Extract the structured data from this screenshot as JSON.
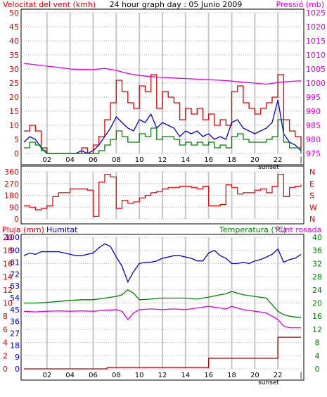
{
  "colors": {
    "background": "#ffffff",
    "panel_bg": "#ffffff",
    "frame": "#000000",
    "grid_v": "#c8c8c8",
    "grid_h": "#b4b4b4",
    "red": "#e00000",
    "green": "#008000",
    "blue": "#0000c8",
    "magenta": "#e000e0",
    "dark_red": "#b00000"
  },
  "chart_data": [
    {
      "type": "line",
      "name": "wind-pressure",
      "title": "24 hour graph day : 05 Junio 2009",
      "left_axis_label": "Velocitat del vent (kmh)",
      "right_axis_label": "Pressió (mb)",
      "y_left_ticks": [
        "0",
        "5",
        "10",
        "15",
        "20",
        "25",
        "30",
        "35",
        "40",
        "45",
        "50"
      ],
      "y_right_ticks": [
        "975",
        "980",
        "985",
        "990",
        "995",
        "1000",
        "1005",
        "1010",
        "1015",
        "1020",
        "1025"
      ],
      "ylim_left": [
        0,
        50
      ],
      "ylim_right": [
        975,
        1025
      ],
      "x_ticks": [
        "02",
        "04",
        "06",
        "08",
        "10",
        "12",
        "14",
        "16",
        "18",
        "20",
        "22"
      ],
      "x_tick_hours": [
        2,
        4,
        6,
        8,
        10,
        12,
        14,
        16,
        18,
        20,
        22
      ],
      "xlim": [
        0,
        24
      ],
      "x_end_label": "|",
      "sunset_label": "sunset",
      "sunset_hour": 21.2,
      "grid": true,
      "series": [
        {
          "color": "red",
          "axis": "left",
          "style": "step",
          "x": [
            0,
            0.5,
            1,
            1.5,
            2,
            2.5,
            3,
            3.5,
            4,
            4.5,
            5,
            5.5,
            6,
            6.5,
            7,
            7.5,
            8,
            8.5,
            9,
            9.5,
            10,
            10.5,
            11,
            11.5,
            12,
            12.5,
            13,
            13.5,
            14,
            14.5,
            15,
            15.5,
            16,
            16.5,
            17,
            17.5,
            18,
            18.5,
            19,
            19.5,
            20,
            20.5,
            21,
            21.5,
            22,
            22.5,
            23,
            23.5,
            24
          ],
          "values": [
            8,
            10,
            8,
            2,
            0,
            0,
            0,
            0,
            0,
            0,
            2,
            0,
            3,
            6,
            12,
            18,
            26,
            22,
            18,
            16,
            24,
            22,
            28,
            16,
            22,
            20,
            18,
            12,
            16,
            14,
            16,
            12,
            14,
            10,
            12,
            10,
            22,
            24,
            18,
            16,
            14,
            16,
            18,
            20,
            28,
            12,
            8,
            6,
            2
          ]
        },
        {
          "color": "blue",
          "axis": "left",
          "style": "line",
          "x": [
            0,
            0.5,
            1,
            1.5,
            2,
            2.5,
            3,
            3.5,
            4,
            4.5,
            5,
            5.5,
            6,
            6.5,
            7,
            7.5,
            8,
            8.5,
            9,
            9.5,
            10,
            10.5,
            11,
            11.5,
            12,
            12.5,
            13,
            13.5,
            14,
            14.5,
            15,
            15.5,
            16,
            16.5,
            17,
            17.5,
            18,
            18.5,
            19,
            19.5,
            20,
            20.5,
            21,
            21.5,
            22,
            22.5,
            23,
            23.5,
            24
          ],
          "values": [
            4,
            6,
            5,
            2,
            0,
            0,
            0,
            0,
            0,
            0,
            1,
            0,
            1,
            3,
            6,
            9,
            13,
            11,
            9,
            8,
            12,
            11,
            14,
            9,
            11,
            10,
            9,
            6,
            8,
            7,
            8,
            6,
            7,
            5,
            6,
            5,
            11,
            12,
            9,
            8,
            7,
            8,
            9,
            11,
            19,
            7,
            4,
            3,
            1
          ]
        },
        {
          "color": "green",
          "axis": "left",
          "style": "step",
          "x": [
            0,
            0.5,
            1,
            1.5,
            2,
            2.5,
            3,
            3.5,
            4,
            4.5,
            5,
            5.5,
            6,
            6.5,
            7,
            7.5,
            8,
            8.5,
            9,
            9.5,
            10,
            10.5,
            11,
            11.5,
            12,
            12.5,
            13,
            13.5,
            14,
            14.5,
            15,
            15.5,
            16,
            16.5,
            17,
            17.5,
            18,
            18.5,
            19,
            19.5,
            20,
            20.5,
            21,
            21.5,
            22,
            22.5,
            23,
            23.5,
            24
          ],
          "values": [
            2,
            4,
            3,
            1,
            0,
            0,
            0,
            0,
            0,
            0,
            0,
            0,
            0,
            1,
            3,
            5,
            8,
            6,
            4,
            4,
            7,
            6,
            9,
            5,
            6,
            6,
            5,
            3,
            4,
            3,
            4,
            3,
            4,
            2,
            3,
            2,
            6,
            7,
            5,
            4,
            4,
            4,
            5,
            6,
            12,
            4,
            2,
            2,
            0
          ]
        },
        {
          "color": "magenta",
          "axis": "right",
          "style": "line",
          "x": [
            0,
            1,
            2,
            3,
            4,
            5,
            6,
            7,
            8,
            9,
            10,
            11,
            12,
            13,
            14,
            15,
            16,
            17,
            18,
            19,
            20,
            21,
            22,
            23,
            24
          ],
          "values": [
            1007,
            1006.5,
            1006,
            1005.6,
            1005,
            1004.8,
            1004.8,
            1005.2,
            1004.5,
            1003.4,
            1002.7,
            1002.3,
            1002,
            1001.8,
            1001.6,
            1001.4,
            1001.2,
            1001,
            1000.7,
            1000.3,
            1000,
            999.6,
            1000.2,
            1000.6,
            1000.8
          ]
        }
      ]
    },
    {
      "type": "line",
      "name": "wind-direction",
      "y_left_ticks": [
        "0",
        "90",
        "180",
        "270",
        "360"
      ],
      "y_right_labels": [
        "N",
        "E",
        "S",
        "W",
        "N"
      ],
      "ylim_left": [
        0,
        360
      ],
      "xlim": [
        0,
        24
      ],
      "grid": true,
      "series": [
        {
          "color": "red",
          "axis": "left",
          "style": "step",
          "x": [
            0,
            0.5,
            1,
            1.5,
            2,
            2.5,
            3,
            3.5,
            4,
            4.5,
            5,
            5.5,
            6,
            6.5,
            7,
            7.5,
            8,
            8.5,
            9,
            9.5,
            10,
            10.5,
            11,
            11.5,
            12,
            12.5,
            13,
            13.5,
            14,
            14.5,
            15,
            15.5,
            16,
            16.5,
            17,
            17.5,
            18,
            18.5,
            19,
            19.5,
            20,
            20.5,
            21,
            21.5,
            22,
            22.5,
            23,
            23.5,
            24
          ],
          "values": [
            100,
            90,
            70,
            80,
            100,
            170,
            200,
            200,
            230,
            230,
            230,
            220,
            20,
            280,
            340,
            320,
            80,
            140,
            120,
            130,
            160,
            180,
            200,
            210,
            230,
            240,
            240,
            250,
            250,
            240,
            230,
            250,
            100,
            100,
            110,
            260,
            240,
            190,
            200,
            200,
            220,
            230,
            200,
            250,
            340,
            170,
            240,
            250,
            260
          ]
        }
      ]
    },
    {
      "type": "line",
      "name": "rain-humidity-temp",
      "left_axis_label": "Pluja (mm)",
      "left_axis_label2": "Humitat",
      "right_axis_label": "Temperatura (°C)",
      "right_axis_label2": "Punt rosada",
      "y_left_ticks_rain": [
        "0",
        "2",
        "4",
        "6",
        "8",
        "10",
        "12",
        "14",
        "16",
        "18",
        "20"
      ],
      "y_left_ticks_hum": [
        "0",
        "9",
        "18",
        "27",
        "36",
        "45",
        "54",
        "63",
        "72",
        "81",
        "90"
      ],
      "y_right_ticks": [
        "0",
        "4",
        "8",
        "12",
        "16",
        "20",
        "24",
        "28",
        "32",
        "36",
        "40"
      ],
      "y_left_max_label": "100",
      "ylim_rain": [
        0,
        20
      ],
      "ylim_hum": [
        0,
        100
      ],
      "ylim_temp": [
        0,
        40
      ],
      "x_ticks": [
        "02",
        "04",
        "06",
        "08",
        "10",
        "12",
        "14",
        "16",
        "18",
        "20",
        "22"
      ],
      "x_tick_hours": [
        2,
        4,
        6,
        8,
        10,
        12,
        14,
        16,
        18,
        20,
        22
      ],
      "xlim": [
        0,
        24
      ],
      "x_end_label": "|",
      "sunset_label": "sunset",
      "sunset_hour": 21.2,
      "grid": true,
      "series": [
        {
          "color": "blue",
          "axis": "hum",
          "style": "line",
          "x": [
            0,
            0.5,
            1,
            1.5,
            2,
            2.5,
            3,
            3.5,
            4,
            4.5,
            5,
            5.5,
            6,
            6.5,
            7,
            7.5,
            8,
            8.5,
            9,
            9.5,
            10,
            10.5,
            11,
            11.5,
            12,
            12.5,
            13,
            13.5,
            14,
            14.5,
            15,
            15.5,
            16,
            16.5,
            17,
            17.5,
            18,
            18.5,
            19,
            19.5,
            20,
            20.5,
            21,
            21.5,
            22,
            22.5,
            23,
            23.5,
            24
          ],
          "values": [
            86,
            88,
            87,
            89,
            89,
            89,
            89,
            88,
            87,
            86,
            86,
            87,
            88,
            92,
            95,
            93,
            85,
            78,
            66,
            74,
            80,
            81,
            81,
            82,
            84,
            85,
            86,
            86,
            85,
            84,
            82,
            82,
            88,
            90,
            86,
            84,
            80,
            80,
            81,
            80,
            82,
            83,
            85,
            87,
            91,
            81,
            83,
            84,
            87
          ]
        },
        {
          "color": "green",
          "axis": "temp",
          "style": "line",
          "x": [
            0,
            1,
            2,
            3,
            4,
            5,
            6,
            7,
            8,
            8.5,
            9,
            9.5,
            10,
            11,
            12,
            13,
            14,
            15,
            16,
            17,
            17.5,
            18,
            19,
            20,
            21,
            22,
            22.5,
            23,
            24
          ],
          "values": [
            20,
            20,
            20.2,
            20.5,
            20.8,
            21,
            21,
            21.5,
            22,
            22.5,
            24,
            23,
            21,
            21.2,
            21.5,
            21.5,
            21.5,
            21.2,
            21.8,
            22.5,
            22.8,
            23.5,
            22.5,
            22,
            21.5,
            17.5,
            16.5,
            16,
            15.5
          ]
        },
        {
          "color": "magenta",
          "axis": "temp",
          "style": "line",
          "x": [
            0,
            1,
            2,
            3,
            4,
            5,
            6,
            7,
            8,
            8.5,
            9,
            9.5,
            10,
            11,
            12,
            13,
            14,
            15,
            16,
            17,
            17.5,
            18,
            19,
            20,
            21,
            22,
            22.5,
            23,
            24
          ],
          "values": [
            17.5,
            17.3,
            17.5,
            17.6,
            17.5,
            17.6,
            17.5,
            17.8,
            18,
            17.5,
            15,
            17,
            18,
            18.2,
            18,
            18.2,
            18,
            18.5,
            19,
            18.5,
            18.2,
            19,
            18,
            17.5,
            17,
            15,
            13,
            12.5,
            12.5
          ]
        },
        {
          "color": "dark_red",
          "axis": "rain",
          "style": "step",
          "x": [
            0,
            7,
            7.2,
            15.5,
            16,
            21.3,
            22,
            24
          ],
          "values": [
            0,
            0,
            0.2,
            0.2,
            1.6,
            1.6,
            4.8,
            4.8
          ]
        }
      ]
    }
  ]
}
